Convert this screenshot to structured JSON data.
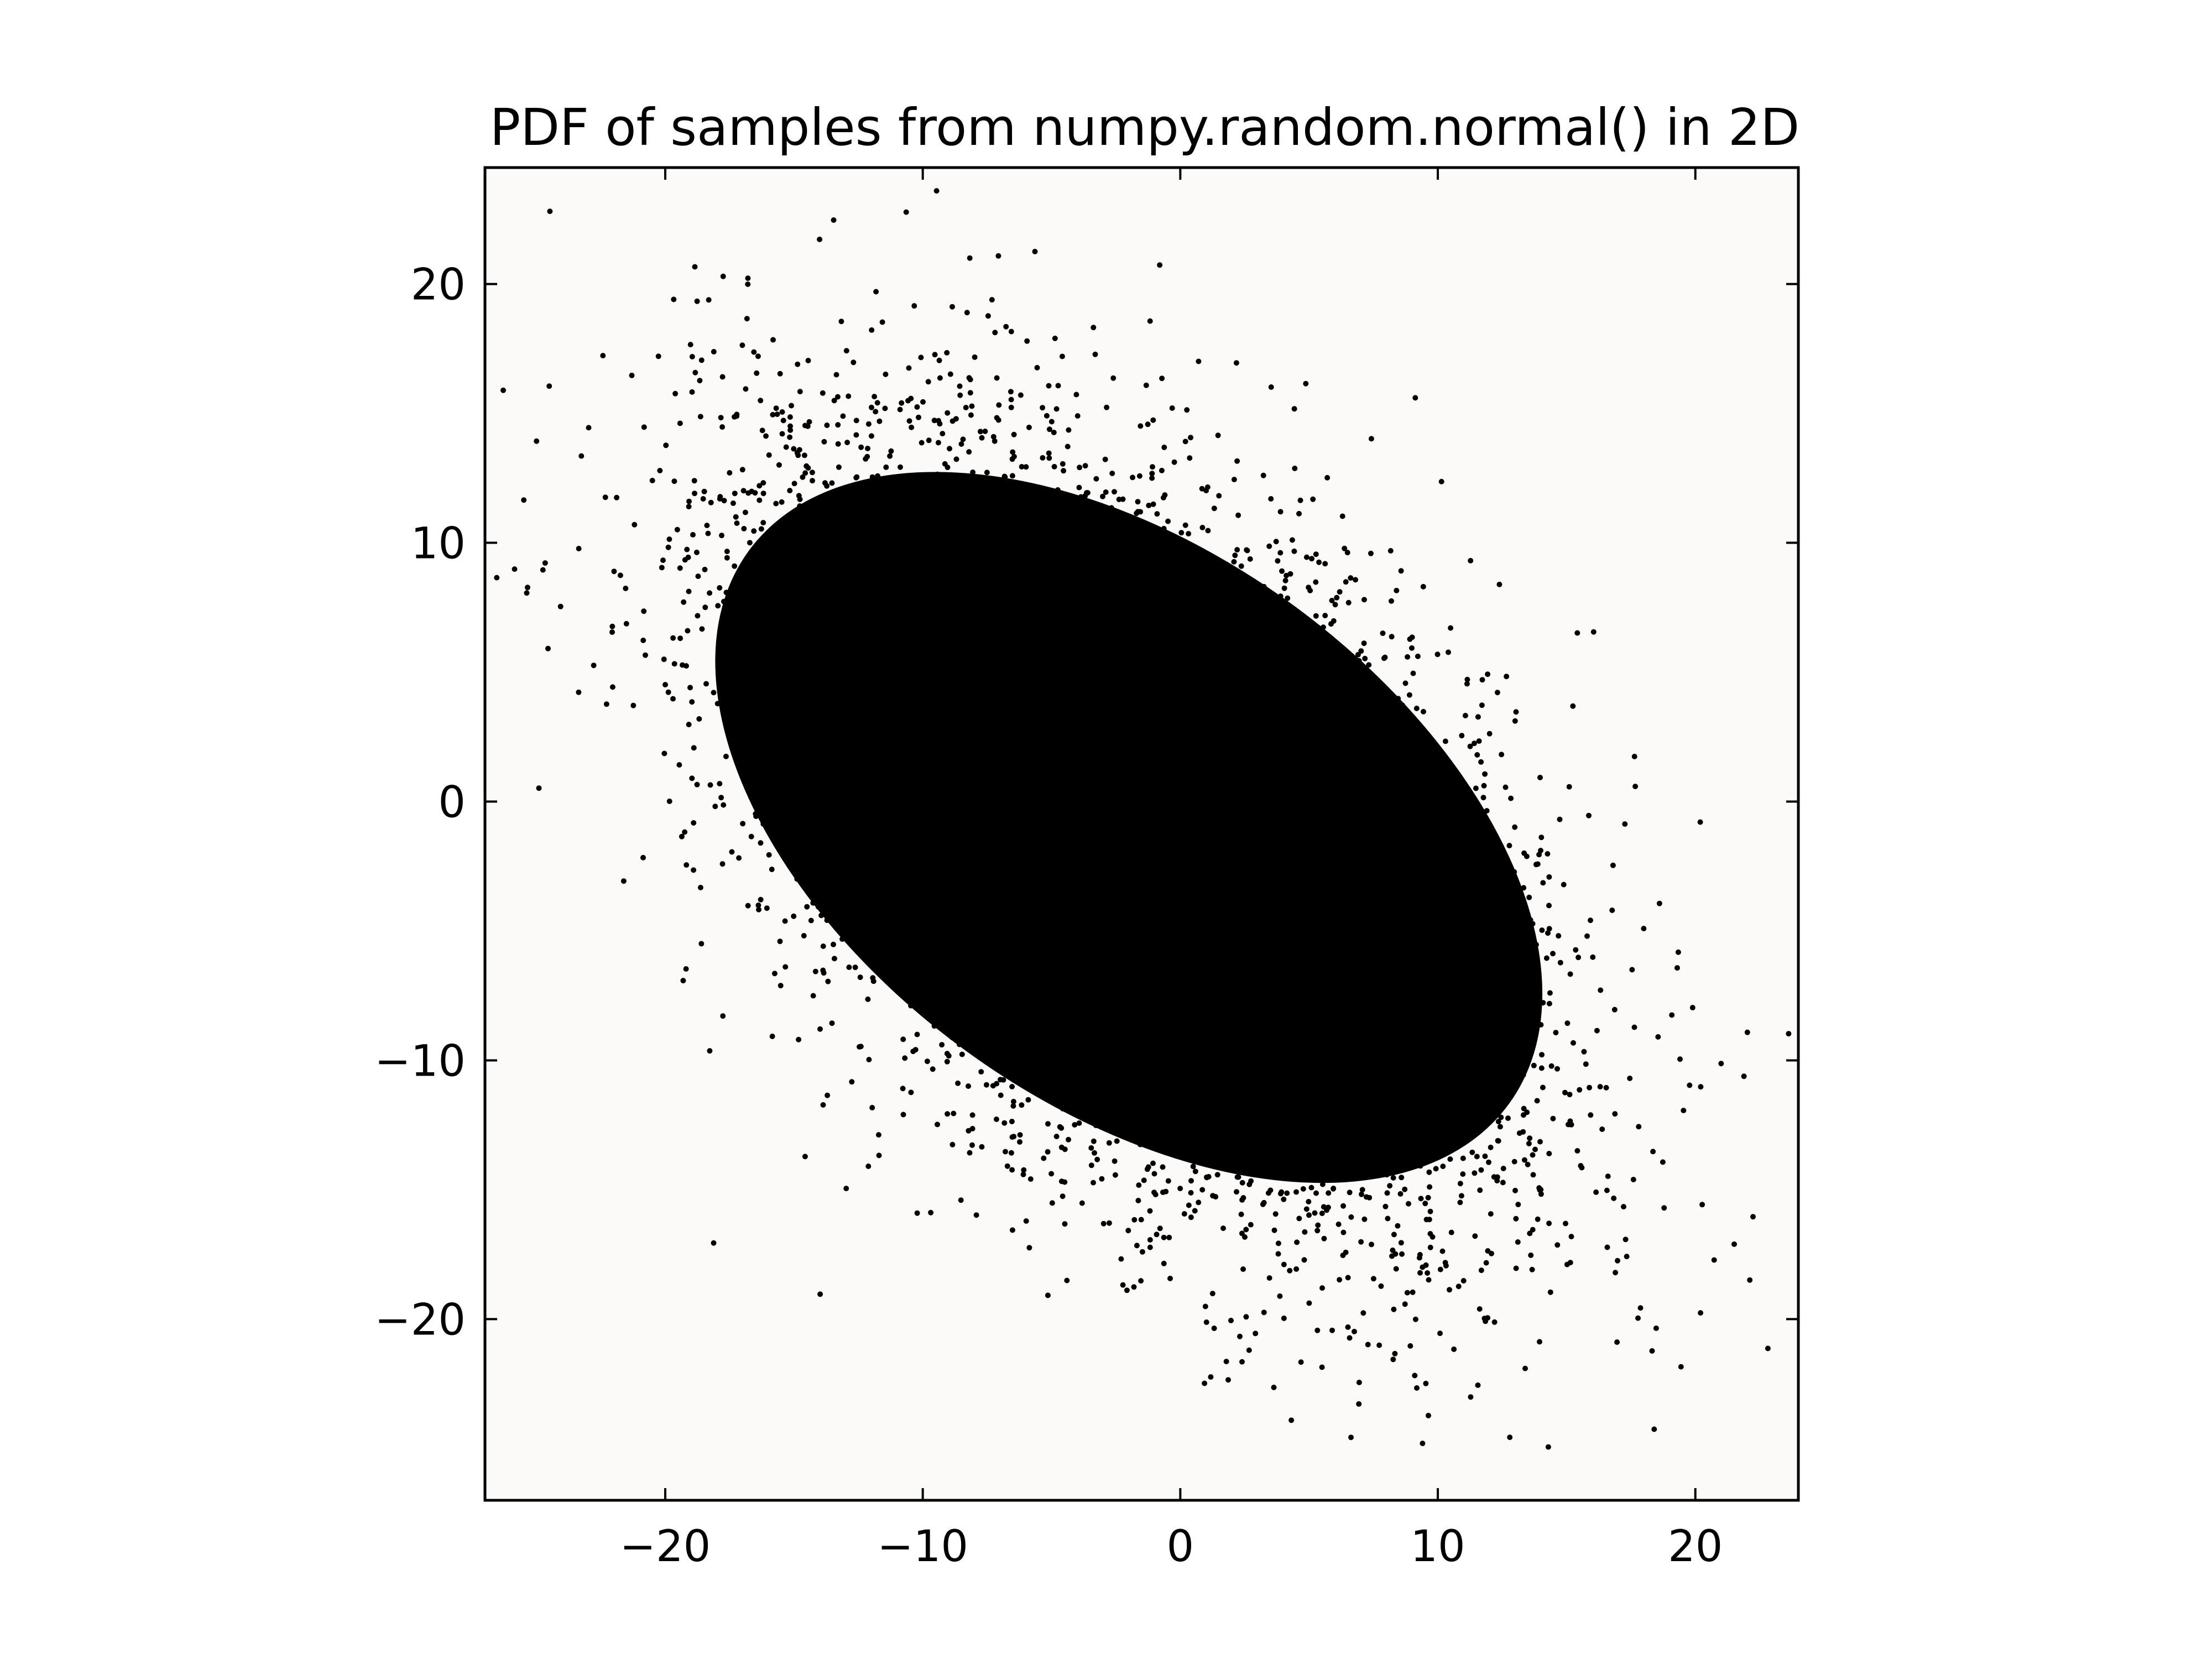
{
  "chart_data": {
    "type": "scatter",
    "title": "PDF of samples from numpy.random.normal() in 2D",
    "xlabel": "",
    "ylabel": "",
    "xlim": [
      -27,
      24
    ],
    "ylim": [
      -27,
      24.5
    ],
    "xticks": [
      -20,
      -10,
      0,
      10,
      20
    ],
    "yticks": [
      -20,
      -10,
      0,
      10,
      20
    ],
    "xtick_labels": [
      "−20",
      "−10",
      "0",
      "10",
      "20"
    ],
    "ytick_labels": [
      "−20",
      "−10",
      "0",
      "10",
      "20"
    ],
    "grid": false,
    "legend": "none",
    "colors": {
      "points": "#000000",
      "axes_background": "#fbfaf8",
      "figure_background": "#ffffff"
    },
    "distribution": {
      "mean": [
        -2,
        -1
      ],
      "std": [
        7.3,
        7.3
      ],
      "correlation": -0.5
    }
  }
}
